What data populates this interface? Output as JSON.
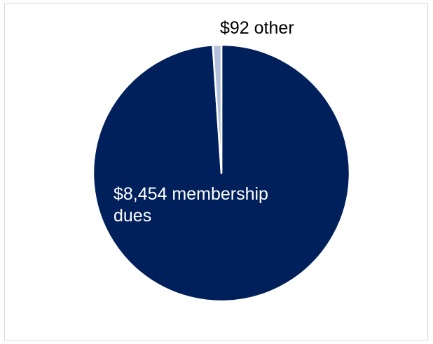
{
  "chart_data": {
    "type": "pie",
    "categories": [
      "membership dues",
      "other"
    ],
    "values": [
      8454,
      92
    ],
    "colors": [
      "#00205b",
      "#b4c0dc"
    ],
    "data_labels": [
      {
        "lines": [
          "$8,454 membership",
          "dues"
        ],
        "color": "#ffffff"
      },
      {
        "lines": [
          "$92 other"
        ],
        "color": "#000000"
      }
    ],
    "title": "",
    "legend": "none",
    "start": "12 o'clock",
    "direction": "clockwise"
  }
}
